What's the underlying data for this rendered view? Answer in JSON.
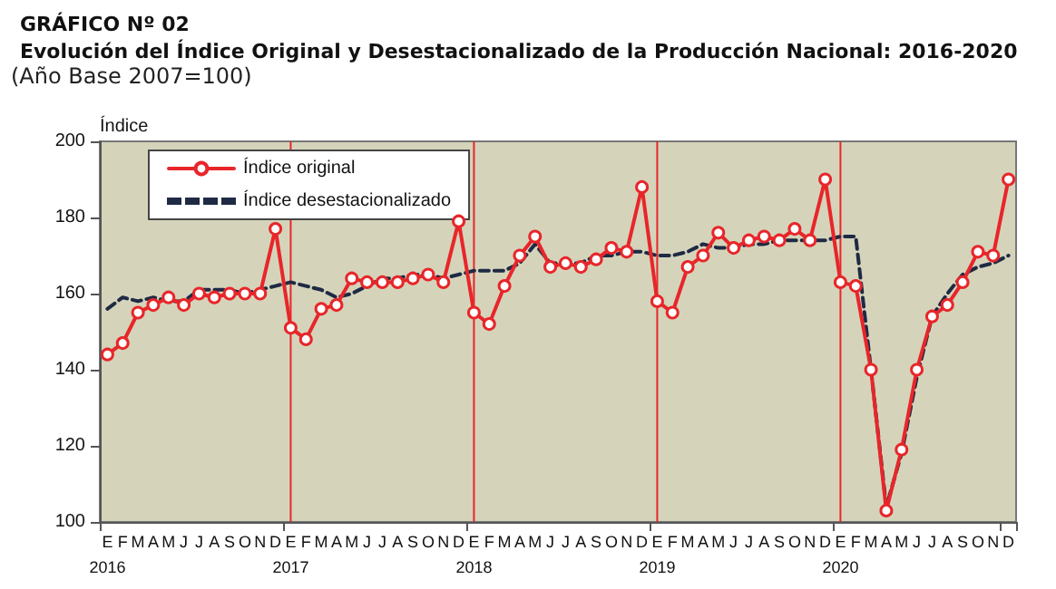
{
  "chart_data": {
    "type": "line",
    "title": "GRÁFICO Nº 02",
    "subtitle": "Evolución del Índice Original y Desestacionalizado de la Producción Nacional: 2016-2020",
    "annotations": [
      "(Año Base 2007=100)"
    ],
    "ylabel": "Índice",
    "categories": [
      "E\n2016",
      "F",
      "M",
      "A",
      "M",
      "J",
      "J",
      "A",
      "S",
      "O",
      "N",
      "D",
      "E\n2017",
      "F",
      "M",
      "A",
      "M",
      "J",
      "J",
      "A",
      "S",
      "O",
      "N",
      "D",
      "E\n2018",
      "F",
      "M",
      "A",
      "M",
      "J",
      "J",
      "A",
      "S",
      "O",
      "N",
      "D",
      "E\n2019",
      "F",
      "M",
      "A",
      "M",
      "J",
      "J",
      "A",
      "S",
      "O",
      "N",
      "D",
      "E\n2020",
      "F",
      "M",
      "A",
      "M",
      "J",
      "J",
      "A",
      "S",
      "O",
      "N",
      "D"
    ],
    "series": [
      {
        "name": "Índice original",
        "color": "#e8262a",
        "marker": "circle",
        "line_style": "solid",
        "values": [
          144,
          147,
          155,
          157,
          159,
          157,
          160,
          159,
          160,
          160,
          160,
          177,
          151,
          148,
          156,
          157,
          164,
          163,
          163,
          163,
          164,
          165,
          163,
          179,
          155,
          152,
          162,
          170,
          175,
          167,
          168,
          167,
          169,
          172,
          171,
          188,
          158,
          155,
          167,
          170,
          176,
          172,
          174,
          175,
          174,
          177,
          174,
          190,
          163,
          162,
          140,
          103,
          119,
          140,
          154,
          157,
          163,
          171,
          170,
          190
        ]
      },
      {
        "name": "Índice desestacionalizado",
        "color": "#1f2a44",
        "marker": "none",
        "line_style": "dashed",
        "values": [
          156,
          159,
          158,
          159,
          158,
          158,
          161,
          161,
          161,
          160,
          161,
          162,
          163,
          162,
          161,
          159,
          160,
          162,
          164,
          164,
          165,
          165,
          164,
          165,
          166,
          166,
          166,
          168,
          173,
          168,
          168,
          168,
          170,
          170,
          171,
          171,
          170,
          170,
          171,
          173,
          172,
          172,
          173,
          173,
          174,
          174,
          174,
          174,
          175,
          175,
          140,
          104,
          118,
          138,
          154,
          160,
          165,
          167,
          168,
          170
        ]
      }
    ],
    "ylim": [
      100,
      200
    ],
    "yticks": [
      100,
      120,
      140,
      160,
      180,
      200
    ],
    "grid": false,
    "legend": "top left",
    "ref_lines": [
      {
        "axis": "x",
        "value": "E\n2017",
        "color": "#e8262a"
      },
      {
        "axis": "x",
        "value": "E\n2018",
        "color": "#e8262a"
      },
      {
        "axis": "x",
        "value": "E\n2019",
        "color": "#e8262a"
      },
      {
        "axis": "x",
        "value": "E\n2020",
        "color": "#e8262a"
      }
    ]
  }
}
